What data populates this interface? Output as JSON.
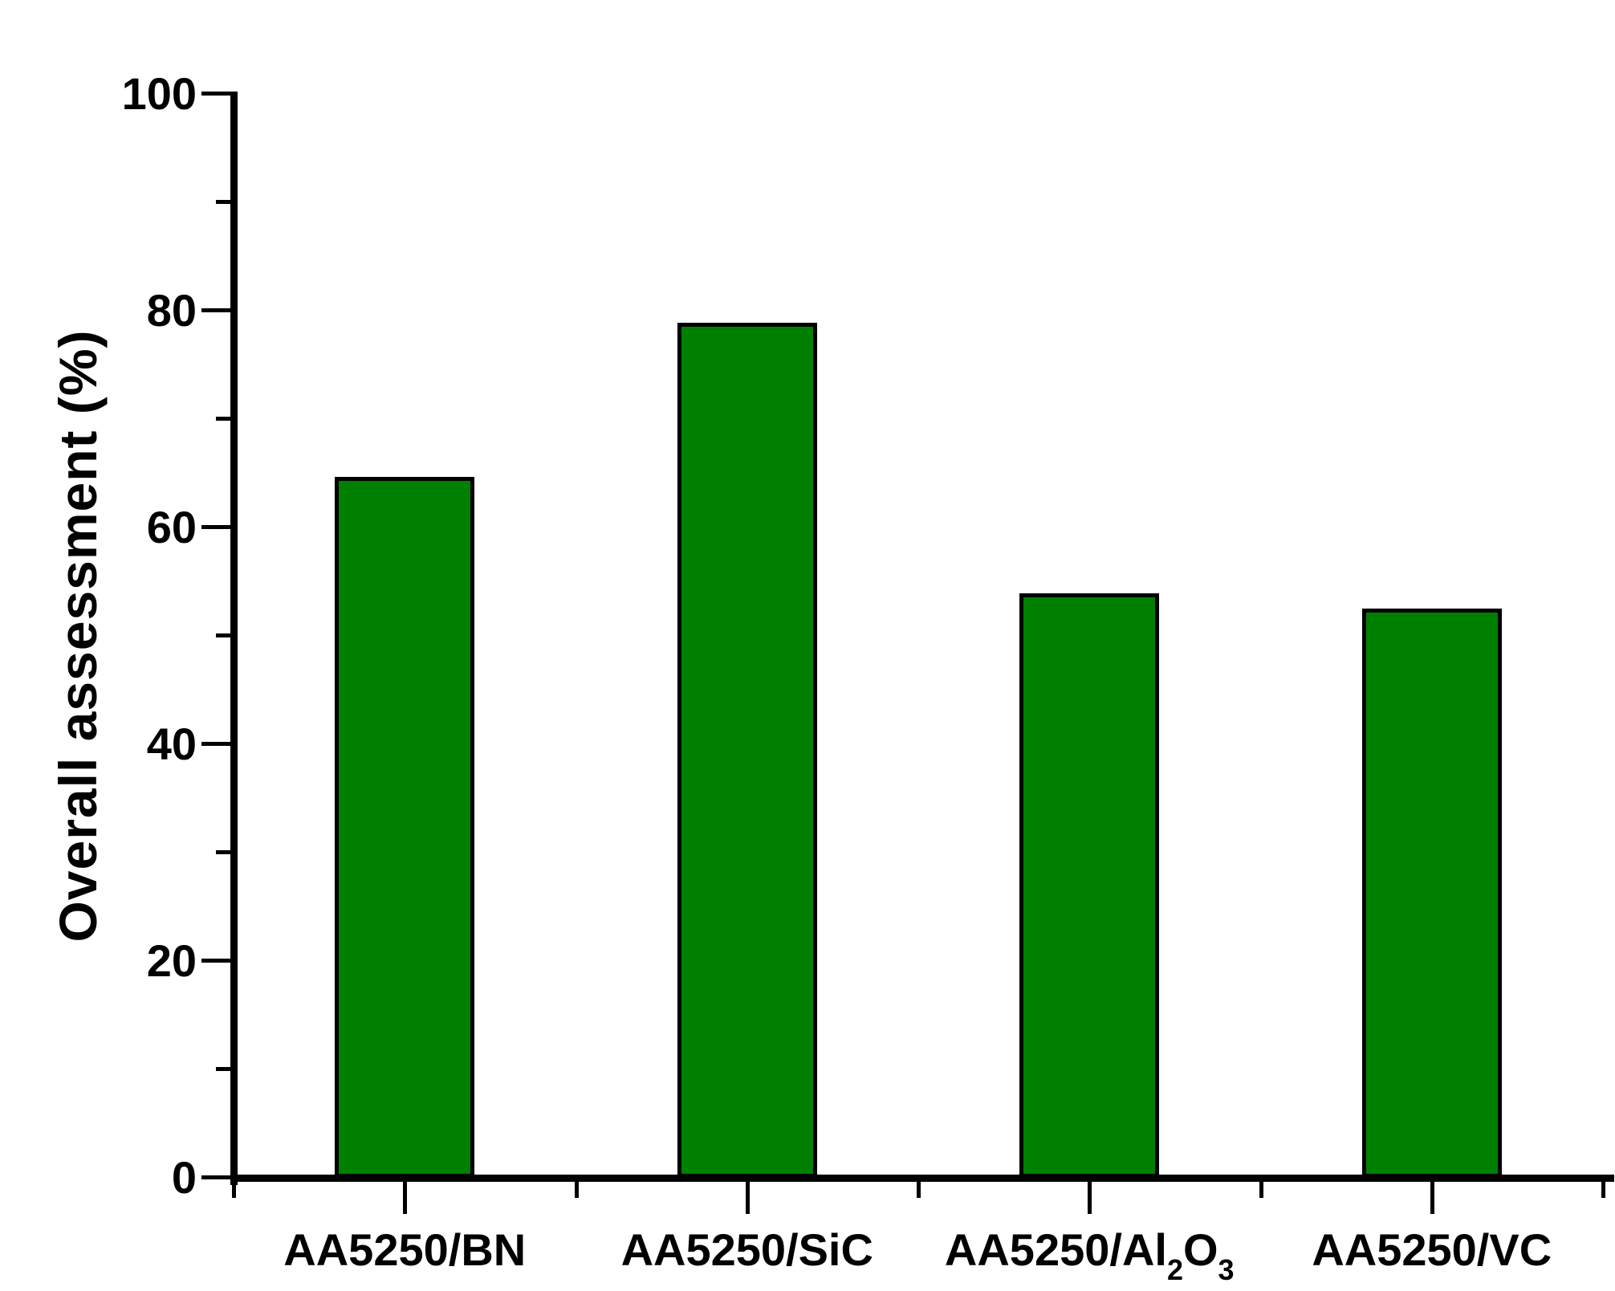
{
  "chart_data": {
    "type": "bar",
    "title": "",
    "xlabel": "",
    "ylabel": "Overall assessment (%)",
    "ylim": [
      0,
      100
    ],
    "y_major_ticks": [
      0,
      20,
      40,
      60,
      80,
      100
    ],
    "y_minor_ticks": [
      10,
      30,
      50,
      70,
      90
    ],
    "grid": "off",
    "legend": "none",
    "categories": [
      {
        "parts": [
          {
            "text": "AA5250/BN",
            "sub": false
          }
        ]
      },
      {
        "parts": [
          {
            "text": "AA5250/SiC",
            "sub": false
          }
        ]
      },
      {
        "parts": [
          {
            "text": "AA5250/Al",
            "sub": false
          },
          {
            "text": "2",
            "sub": true
          },
          {
            "text": "O",
            "sub": false
          },
          {
            "text": "3",
            "sub": true
          }
        ]
      },
      {
        "parts": [
          {
            "text": "AA5250/VC",
            "sub": false
          }
        ]
      }
    ],
    "category_labels_plain": [
      "AA5250/BN",
      "AA5250/SiC",
      "AA5250/Al2O3",
      "AA5250/VC"
    ],
    "values": [
      64.7,
      78.9,
      53.9,
      52.5
    ],
    "bar_fill_color": "#008000",
    "bar_border_color": "#000000",
    "axis_color": "#000000",
    "background_color": "#ffffff"
  }
}
